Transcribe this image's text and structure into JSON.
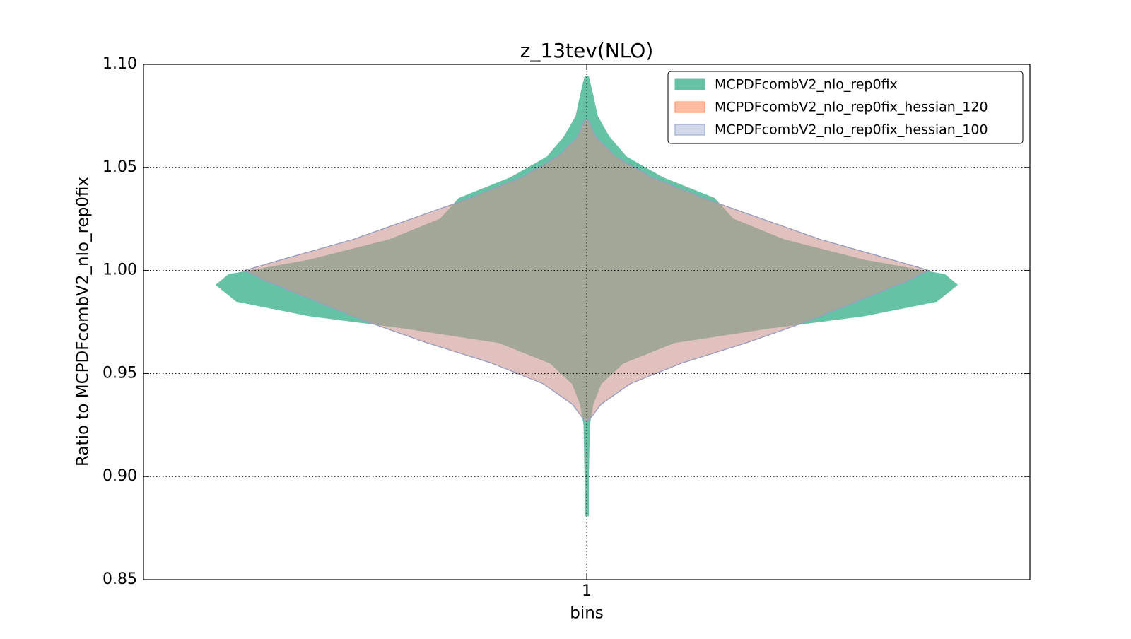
{
  "chart_data": {
    "type": "violin",
    "title": "z_13tev(NLO)",
    "xlabel": "bins",
    "ylabel": "Ratio to MCPDFcombV2_nlo_rep0fix",
    "x": [
      1
    ],
    "xlim": [
      0.5,
      1.5
    ],
    "xticks": [
      1
    ],
    "ylim": [
      0.85,
      1.1
    ],
    "yticks": [
      {
        "value": 1.1,
        "label": "1.10"
      },
      1.05,
      {
        "value": 1.0,
        "label": "1.00"
      },
      0.95,
      {
        "value": 0.9,
        "label": "0.90"
      },
      0.85
    ],
    "grid": true,
    "legend": "upper right",
    "series": [
      {
        "name": "MCPDFcombV2_nlo_rep0fix",
        "color": "#66c2a5",
        "edge": "#66c2a5",
        "opacity": 1,
        "values": [
          1.094,
          1.085,
          1.075,
          1.065,
          1.055,
          1.045,
          1.035,
          1.025,
          1.015,
          1.005,
          0.998,
          0.993,
          0.985,
          0.978,
          0.972,
          0.965,
          0.955,
          0.945,
          0.935,
          0.925,
          0.9,
          0.881
        ],
        "widths": [
          0.002,
          0.007,
          0.012,
          0.025,
          0.045,
          0.086,
          0.144,
          0.165,
          0.222,
          0.313,
          0.404,
          0.418,
          0.395,
          0.313,
          0.206,
          0.099,
          0.041,
          0.016,
          0.007,
          0.003,
          0.002,
          0.002
        ]
      },
      {
        "name": "MCPDFcombV2_nlo_rep0fix_hessian_120",
        "color": "#fc8d62",
        "edge": "#fc8d62",
        "opacity": 0.45,
        "values": [
          1.073,
          1.065,
          1.055,
          1.045,
          1.035,
          1.025,
          1.015,
          1.005,
          1.0,
          0.995,
          0.985,
          0.975,
          0.965,
          0.955,
          0.945,
          0.935,
          0.927
        ],
        "widths": [
          0.002,
          0.01,
          0.033,
          0.074,
          0.132,
          0.198,
          0.264,
          0.346,
          0.386,
          0.362,
          0.305,
          0.247,
          0.181,
          0.107,
          0.049,
          0.016,
          0.002
        ]
      },
      {
        "name": "MCPDFcombV2_nlo_rep0fix_hessian_100",
        "color": "#8da0cb",
        "edge": "#8da0cb",
        "opacity": 0.25,
        "values": [
          1.073,
          1.065,
          1.055,
          1.045,
          1.035,
          1.025,
          1.015,
          1.005,
          1.0,
          0.995,
          0.985,
          0.975,
          0.965,
          0.955,
          0.945,
          0.935,
          0.927
        ],
        "widths": [
          0.002,
          0.01,
          0.033,
          0.074,
          0.132,
          0.198,
          0.264,
          0.346,
          0.386,
          0.362,
          0.305,
          0.247,
          0.181,
          0.107,
          0.049,
          0.016,
          0.002
        ]
      }
    ]
  }
}
